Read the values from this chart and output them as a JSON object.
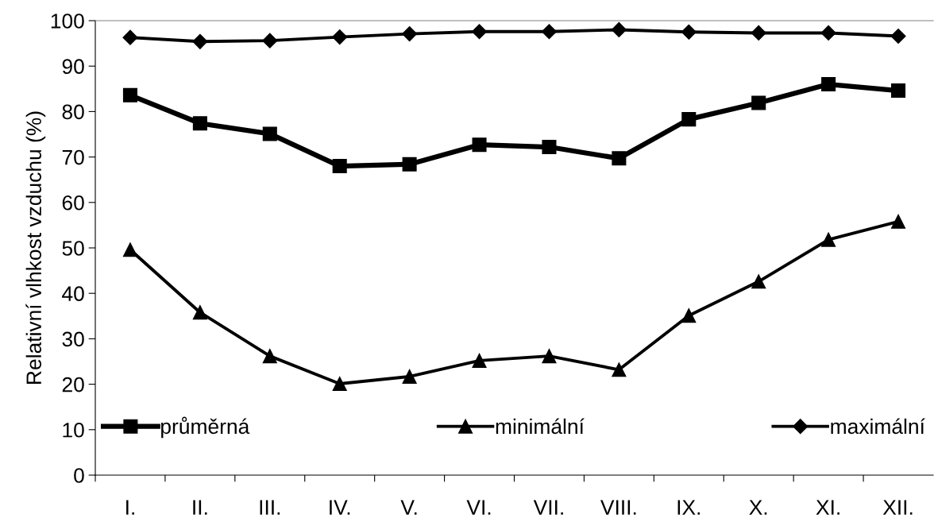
{
  "chart_data": {
    "type": "line",
    "ylabel": "Relativní vlhkost vzduchu (%)",
    "categories": [
      "I.",
      "II.",
      "III.",
      "IV.",
      "V.",
      "VI.",
      "VII.",
      "VIII.",
      "IX.",
      "X.",
      "XI.",
      "XII."
    ],
    "series": [
      {
        "name": "průměrná",
        "color": "#000000",
        "marker": "square",
        "values": [
          83.6,
          77.4,
          75.1,
          68.0,
          68.4,
          72.7,
          72.2,
          69.7,
          78.3,
          81.9,
          86.0,
          84.6
        ]
      },
      {
        "name": "minimální",
        "color": "#000000",
        "marker": "triangle",
        "values": [
          49.6,
          35.8,
          26.2,
          20.1,
          21.7,
          25.2,
          26.2,
          23.2,
          35.1,
          42.6,
          51.8,
          55.8
        ]
      },
      {
        "name": "maximální",
        "color": "#000000",
        "marker": "diamond",
        "values": [
          96.3,
          95.4,
          95.6,
          96.4,
          97.1,
          97.6,
          97.6,
          98.0,
          97.5,
          97.3,
          97.3,
          96.6
        ]
      }
    ],
    "ylim": [
      0,
      100
    ],
    "yticks": [
      0,
      10,
      20,
      30,
      40,
      50,
      60,
      70,
      80,
      90,
      100
    ],
    "grid": false,
    "legend": "bottom"
  }
}
